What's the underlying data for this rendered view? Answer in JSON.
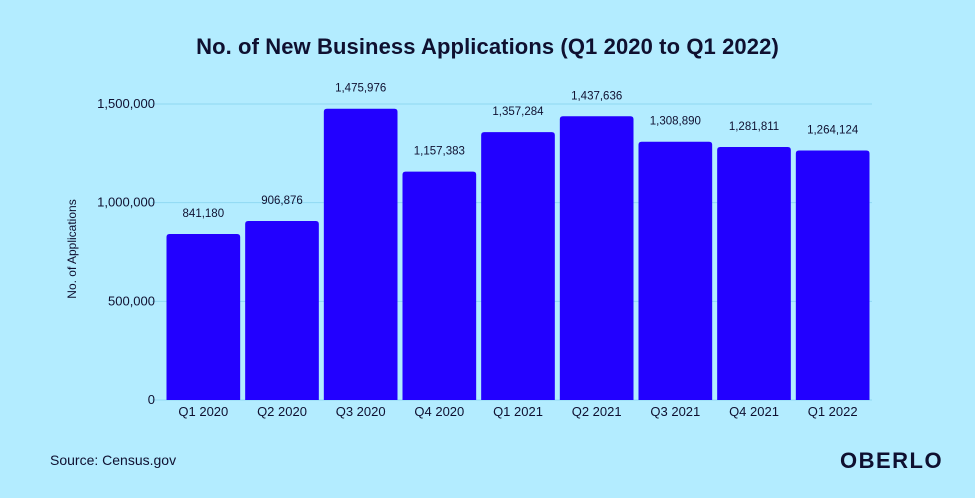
{
  "chart_data": {
    "type": "bar",
    "title": "No. of New Business Applications (Q1 2020 to Q1 2022)",
    "xlabel": "",
    "ylabel": "No. of Applications",
    "categories": [
      "Q1 2020",
      "Q2 2020",
      "Q3 2020",
      "Q4 2020",
      "Q1 2021",
      "Q2 2021",
      "Q3 2021",
      "Q4 2021",
      "Q1 2022"
    ],
    "values": [
      841180,
      906876,
      1475976,
      1157383,
      1357284,
      1437636,
      1308890,
      1281811,
      1264124
    ],
    "value_labels": [
      "841,180",
      "906,876",
      "1,475,976",
      "1,157,383",
      "1,357,284",
      "1,437,636",
      "1,308,890",
      "1,281,811",
      "1,264,124"
    ],
    "ylim": [
      0,
      1500000
    ],
    "yticks": [
      0,
      500000,
      1000000,
      1500000
    ],
    "ytick_labels": [
      "0",
      "500,000",
      "1,000,000",
      "1,500,000"
    ],
    "grid": true,
    "legend": "none",
    "bar_color": "#2200ff",
    "background_color": "#b3ecff",
    "grid_color": "#8fd9f2"
  },
  "footer": {
    "source": "Source: Census.gov",
    "brand": "OBERLO"
  }
}
